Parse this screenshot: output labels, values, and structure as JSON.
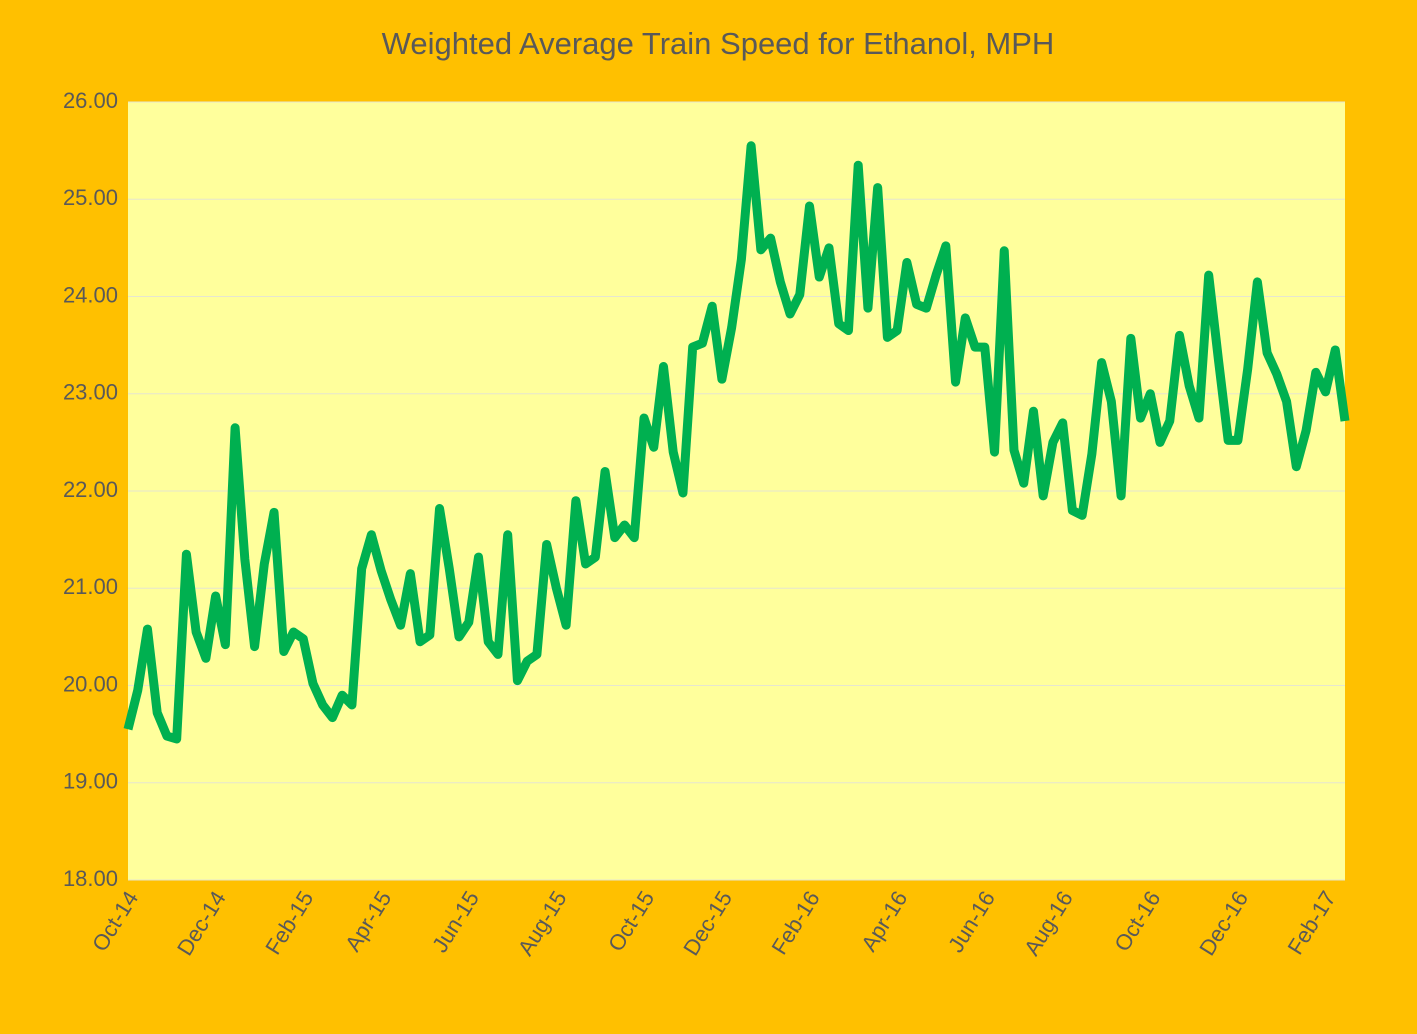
{
  "chart_data": {
    "type": "line",
    "title": "Weighted Average Train Speed for Ethanol, MPH",
    "categories": [
      "Oct-14",
      null,
      null,
      null,
      null,
      null,
      null,
      null,
      null,
      "Dec-14",
      null,
      null,
      null,
      null,
      null,
      null,
      null,
      null,
      "Feb-15",
      null,
      null,
      null,
      null,
      null,
      null,
      null,
      "Apr-15",
      null,
      null,
      null,
      null,
      null,
      null,
      null,
      null,
      "Jun-15",
      null,
      null,
      null,
      null,
      null,
      null,
      null,
      null,
      "Aug-15",
      null,
      null,
      null,
      null,
      null,
      null,
      null,
      null,
      "Oct-15",
      null,
      null,
      null,
      null,
      null,
      null,
      null,
      "Dec-15",
      null,
      null,
      null,
      null,
      null,
      null,
      null,
      null,
      "Feb-16",
      null,
      null,
      null,
      null,
      null,
      null,
      null,
      null,
      "Apr-16",
      null,
      null,
      null,
      null,
      null,
      null,
      null,
      null,
      "Jun-16",
      null,
      null,
      null,
      null,
      null,
      null,
      null,
      "Aug-16",
      null,
      null,
      null,
      null,
      null,
      null,
      null,
      null,
      "Oct-16",
      null,
      null,
      null,
      null,
      null,
      null,
      null,
      null,
      "Dec-16",
      null,
      null,
      null,
      null,
      null,
      null,
      null,
      null,
      "Feb-17",
      null,
      null
    ],
    "values": [
      19.55,
      19.95,
      20.58,
      19.72,
      19.48,
      19.45,
      21.35,
      20.55,
      20.28,
      20.92,
      20.42,
      22.65,
      21.3,
      20.4,
      21.25,
      21.78,
      20.35,
      20.55,
      20.48,
      20.02,
      19.8,
      19.67,
      19.9,
      19.8,
      21.2,
      21.55,
      21.18,
      20.88,
      20.62,
      21.15,
      20.45,
      20.52,
      21.82,
      21.2,
      20.5,
      20.65,
      21.32,
      20.45,
      20.32,
      21.55,
      20.05,
      20.25,
      20.32,
      21.45,
      21.0,
      20.62,
      21.9,
      21.25,
      21.32,
      22.2,
      21.52,
      21.65,
      21.52,
      22.75,
      22.45,
      23.28,
      22.4,
      21.98,
      23.48,
      23.52,
      23.9,
      23.15,
      23.68,
      24.38,
      25.55,
      24.48,
      24.6,
      24.15,
      23.82,
      24.02,
      24.93,
      24.2,
      24.5,
      23.72,
      23.65,
      25.35,
      23.88,
      25.12,
      23.58,
      23.65,
      24.35,
      23.92,
      23.88,
      24.22,
      24.52,
      23.12,
      23.78,
      23.48,
      23.48,
      22.4,
      24.47,
      22.42,
      22.08,
      22.82,
      21.95,
      22.5,
      22.7,
      21.8,
      21.75,
      22.38,
      23.32,
      22.92,
      21.95,
      23.57,
      22.75,
      23.0,
      22.5,
      22.72,
      23.6,
      23.08,
      22.75,
      24.22,
      23.35,
      22.52,
      22.52,
      23.25,
      24.15,
      23.42,
      23.2,
      22.92,
      22.25,
      22.62,
      23.22,
      23.02,
      23.45,
      22.72
    ],
    "color": "#00B050",
    "ylim": [
      18,
      26
    ],
    "yticks": [
      {
        "value": 18,
        "label": "18.00"
      },
      {
        "value": 19,
        "label": "19.00"
      },
      {
        "value": 20,
        "label": "20.00"
      },
      {
        "value": 21,
        "label": "21.00"
      },
      {
        "value": 22,
        "label": "22.00"
      },
      {
        "value": 23,
        "label": "23.00"
      },
      {
        "value": 24,
        "label": "24.00"
      },
      {
        "value": 25,
        "label": "25.00"
      },
      {
        "value": 26,
        "label": "26.00"
      }
    ],
    "grid": true
  }
}
